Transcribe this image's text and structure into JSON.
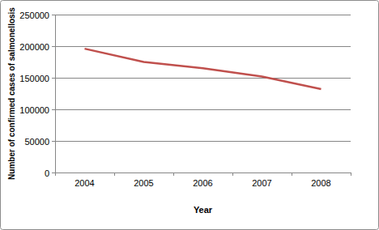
{
  "chart_data": {
    "type": "line",
    "x_label": "Year",
    "y_label": "Number of confirmed cases of salmonellosis",
    "categories": [
      "2004",
      "2005",
      "2006",
      "2007",
      "2008"
    ],
    "values": [
      196000,
      175000,
      165000,
      152000,
      132000
    ],
    "color": "#c0504d",
    "ylim": [
      0,
      250000
    ],
    "yticks": [
      0,
      50000,
      100000,
      150000,
      200000,
      250000
    ],
    "grid": true
  }
}
